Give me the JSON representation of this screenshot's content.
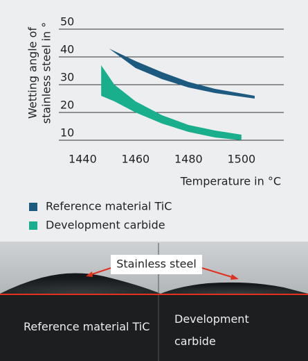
{
  "chart_data": {
    "type": "band",
    "y_label_lines": [
      "Wetting angle of",
      "stainless steel in °"
    ],
    "x_label": "Temperature in °C",
    "xlim": [
      1431,
      1516
    ],
    "xticks": [
      1440,
      1460,
      1480,
      1500
    ],
    "ylim": [
      10,
      50
    ],
    "yticks": [
      10,
      20,
      30,
      40,
      50
    ],
    "grid": true,
    "series": [
      {
        "name": "Reference material TiC",
        "color": "#1d5a80",
        "x": [
          1450,
          1460,
          1470,
          1480,
          1490,
          1505
        ],
        "high": [
          43,
          38.5,
          34.5,
          31,
          28.5,
          26
        ],
        "low": [
          43,
          36,
          32,
          29,
          27,
          25
        ]
      },
      {
        "name": "Development carbide",
        "color": "#19ae8c",
        "x": [
          1447,
          1452,
          1460,
          1470,
          1480,
          1490,
          1500
        ],
        "high": [
          37,
          30,
          24,
          19,
          15.5,
          13.5,
          12
        ],
        "low": [
          26,
          24,
          20,
          16,
          13,
          11,
          10
        ]
      }
    ]
  },
  "photo": {
    "caption": "Stainless steel",
    "left_label": "Reference material TiC",
    "right_label": "Development carbide"
  }
}
